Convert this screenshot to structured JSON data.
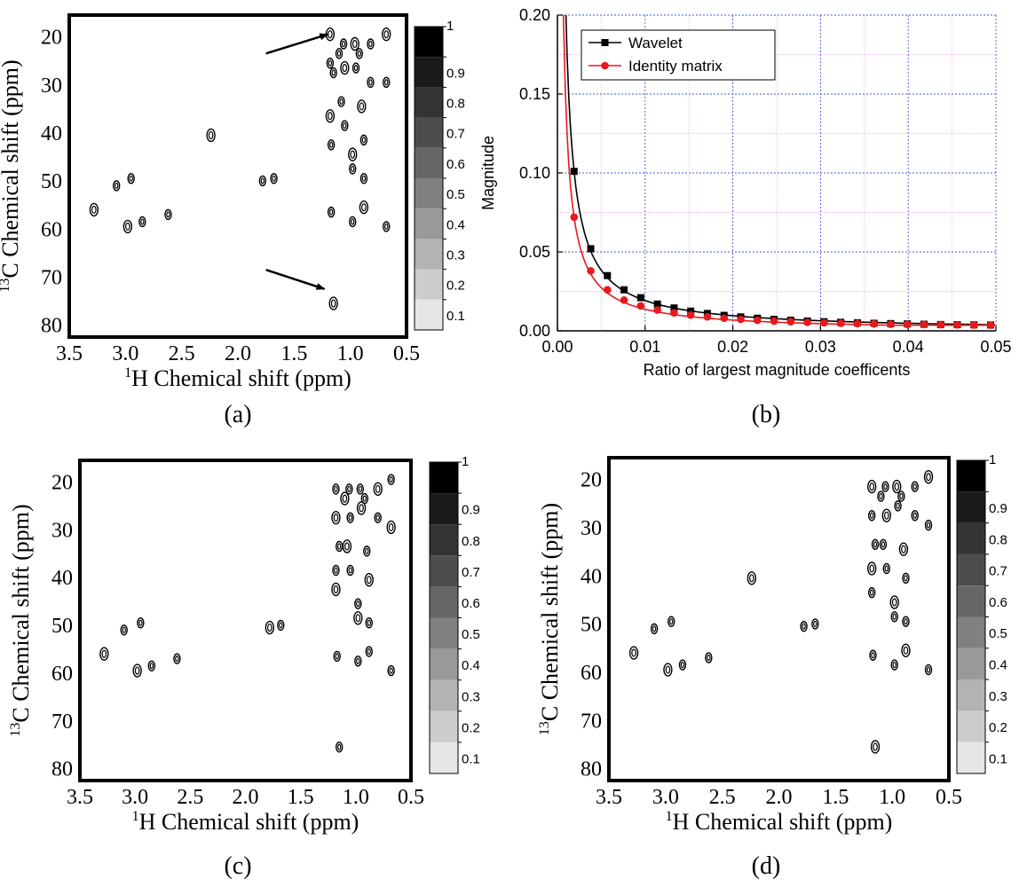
{
  "chart_data": [
    {
      "id": "a",
      "type": "contour",
      "panel_label": "(a)",
      "xlabel_sup": "1",
      "xlabel": "H Chemical shift (ppm)",
      "ylabel_sup": "13",
      "ylabel": "C Chemical shift (ppm)",
      "xticks": [
        "3.5",
        "3.0",
        "2.5",
        "2.0",
        "1.5",
        "1.0",
        "0.5"
      ],
      "yticks": [
        "20",
        "30",
        "40",
        "50",
        "60",
        "70",
        "80"
      ],
      "xlim": [
        3.5,
        0.5
      ],
      "ylim": [
        15,
        82
      ],
      "colorbar_ticks": [
        "0.1",
        "0.2",
        "0.3",
        "0.4",
        "0.5",
        "0.6",
        "0.7",
        "0.8",
        "0.9",
        "1"
      ],
      "arrows": [
        {
          "from": [
            1.75,
            23
          ],
          "to": [
            1.2,
            19
          ]
        },
        {
          "from": [
            1.75,
            68
          ],
          "to": [
            1.23,
            72
          ]
        }
      ],
      "peaks": [
        [
          3.28,
          55.5
        ],
        [
          3.08,
          50.5
        ],
        [
          2.95,
          49
        ],
        [
          2.98,
          59
        ],
        [
          2.85,
          58
        ],
        [
          2.62,
          56.5
        ],
        [
          2.24,
          40
        ],
        [
          1.78,
          49.5
        ],
        [
          1.68,
          49
        ],
        [
          1.18,
          19
        ],
        [
          1.18,
          25
        ],
        [
          1.15,
          27
        ],
        [
          1.18,
          36
        ],
        [
          1.17,
          42
        ],
        [
          1.17,
          56
        ],
        [
          1.15,
          75
        ],
        [
          1.1,
          23
        ],
        [
          1.06,
          21
        ],
        [
          1.05,
          26
        ],
        [
          1.08,
          33
        ],
        [
          1.05,
          38
        ],
        [
          0.98,
          44
        ],
        [
          0.98,
          47
        ],
        [
          0.98,
          58
        ],
        [
          0.96,
          21
        ],
        [
          0.95,
          26
        ],
        [
          0.92,
          23
        ],
        [
          0.9,
          34
        ],
        [
          0.88,
          41
        ],
        [
          0.88,
          49
        ],
        [
          0.88,
          55
        ],
        [
          0.82,
          21
        ],
        [
          0.82,
          29
        ],
        [
          0.68,
          19
        ],
        [
          0.68,
          29
        ],
        [
          0.68,
          59
        ]
      ]
    },
    {
      "id": "b",
      "type": "line",
      "panel_label": "(b)",
      "xlabel": "Ratio of largest magnitude coefficents",
      "ylabel": "Magnitude",
      "xlim": [
        0,
        0.05
      ],
      "ylim": [
        0,
        0.2
      ],
      "xticks": [
        "0.00",
        "0.01",
        "0.02",
        "0.03",
        "0.04",
        "0.05"
      ],
      "yticks": [
        "0.00",
        "0.05",
        "0.10",
        "0.15",
        "0.20"
      ],
      "grid": true,
      "legend_position": "top-left",
      "series": [
        {
          "name": "Wavelet",
          "color": "#000000",
          "marker": "square",
          "x": [
            0.0019,
            0.0038,
            0.0057,
            0.0076,
            0.0095,
            0.0114,
            0.0133,
            0.0152,
            0.0171,
            0.019,
            0.0209,
            0.0228,
            0.0247,
            0.0266,
            0.0285,
            0.0304,
            0.0323,
            0.0342,
            0.0361,
            0.038,
            0.0399,
            0.0418,
            0.0437,
            0.0456,
            0.0475,
            0.0494
          ],
          "y": [
            0.101,
            0.052,
            0.035,
            0.026,
            0.021,
            0.017,
            0.0145,
            0.0125,
            0.011,
            0.0098,
            0.0088,
            0.008,
            0.0073,
            0.0067,
            0.0062,
            0.0058,
            0.0054,
            0.0051,
            0.0048,
            0.0046,
            0.0044,
            0.0042,
            0.004,
            0.0039,
            0.0038,
            0.0037
          ]
        },
        {
          "name": "Identity matrix",
          "color": "#e8191c",
          "marker": "circle",
          "x": [
            0.0019,
            0.0038,
            0.0057,
            0.0076,
            0.0095,
            0.0114,
            0.0133,
            0.0152,
            0.0171,
            0.019,
            0.0209,
            0.0228,
            0.0247,
            0.0266,
            0.0285,
            0.0304,
            0.0323,
            0.0342,
            0.0361,
            0.038,
            0.0399,
            0.0418,
            0.0437,
            0.0456,
            0.0475,
            0.0494
          ],
          "y": [
            0.072,
            0.038,
            0.026,
            0.0195,
            0.0158,
            0.0132,
            0.0114,
            0.01,
            0.0089,
            0.008,
            0.0073,
            0.0067,
            0.0062,
            0.0058,
            0.0054,
            0.0051,
            0.0048,
            0.0046,
            0.0044,
            0.0042,
            0.0041,
            0.004,
            0.0039,
            0.0038,
            0.0037,
            0.0036
          ]
        }
      ]
    },
    {
      "id": "c",
      "type": "contour",
      "panel_label": "(c)",
      "xlabel_sup": "1",
      "xlabel": "H Chemical shift (ppm)",
      "ylabel_sup": "13",
      "ylabel": "C Chemical shift (ppm)",
      "xticks": [
        "3.5",
        "3.0",
        "2.5",
        "2.0",
        "1.5",
        "1.0",
        "0.5"
      ],
      "yticks": [
        "20",
        "30",
        "40",
        "50",
        "60",
        "70",
        "80"
      ],
      "xlim": [
        3.5,
        0.5
      ],
      "ylim": [
        15,
        82
      ],
      "colorbar_ticks": [
        "0.1",
        "0.2",
        "0.3",
        "0.4",
        "0.5",
        "0.6",
        "0.7",
        "0.8",
        "0.9",
        "1"
      ],
      "arrows": [],
      "peaks": [
        [
          3.28,
          55.5
        ],
        [
          3.1,
          50.5
        ],
        [
          2.95,
          49
        ],
        [
          2.98,
          59
        ],
        [
          2.85,
          58
        ],
        [
          2.62,
          56.5
        ],
        [
          1.78,
          50
        ],
        [
          1.68,
          49.5
        ],
        [
          1.18,
          21
        ],
        [
          1.18,
          27
        ],
        [
          1.15,
          33
        ],
        [
          1.18,
          38
        ],
        [
          1.18,
          42
        ],
        [
          1.17,
          56
        ],
        [
          1.15,
          75
        ],
        [
          1.1,
          23
        ],
        [
          1.06,
          21
        ],
        [
          1.05,
          27
        ],
        [
          1.08,
          33
        ],
        [
          1.05,
          38
        ],
        [
          0.98,
          45
        ],
        [
          0.98,
          48
        ],
        [
          0.98,
          57
        ],
        [
          0.96,
          21
        ],
        [
          0.95,
          25
        ],
        [
          0.92,
          23
        ],
        [
          0.9,
          34
        ],
        [
          0.88,
          40
        ],
        [
          0.88,
          49
        ],
        [
          0.88,
          55
        ],
        [
          0.8,
          21
        ],
        [
          0.8,
          27
        ],
        [
          0.68,
          19
        ],
        [
          0.68,
          29
        ],
        [
          0.68,
          59
        ]
      ]
    },
    {
      "id": "d",
      "type": "contour",
      "panel_label": "(d)",
      "xlabel_sup": "1",
      "xlabel": "H Chemical shift (ppm)",
      "ylabel_sup": "13",
      "ylabel": "C Chemical shift (ppm)",
      "xticks": [
        "3.5",
        "3.0",
        "2.5",
        "2.0",
        "1.5",
        "1.0",
        "0.5"
      ],
      "yticks": [
        "20",
        "30",
        "40",
        "50",
        "60",
        "70",
        "80"
      ],
      "xlim": [
        3.5,
        0.5
      ],
      "ylim": [
        15,
        82
      ],
      "colorbar_ticks": [
        "0.1",
        "0.2",
        "0.3",
        "0.4",
        "0.5",
        "0.6",
        "0.7",
        "0.8",
        "0.9",
        "1"
      ],
      "arrows": [],
      "peaks": [
        [
          3.28,
          55.5
        ],
        [
          3.1,
          50.5
        ],
        [
          2.95,
          49
        ],
        [
          2.98,
          59
        ],
        [
          2.85,
          58
        ],
        [
          2.62,
          56.5
        ],
        [
          2.24,
          40
        ],
        [
          1.78,
          50
        ],
        [
          1.68,
          49.5
        ],
        [
          1.18,
          21
        ],
        [
          1.18,
          27
        ],
        [
          1.15,
          33
        ],
        [
          1.18,
          38
        ],
        [
          1.18,
          43
        ],
        [
          1.17,
          56
        ],
        [
          1.15,
          75
        ],
        [
          1.1,
          23
        ],
        [
          1.06,
          21
        ],
        [
          1.05,
          27
        ],
        [
          1.08,
          33
        ],
        [
          1.05,
          38
        ],
        [
          0.98,
          45
        ],
        [
          0.98,
          48
        ],
        [
          0.98,
          58
        ],
        [
          0.96,
          21
        ],
        [
          0.95,
          25
        ],
        [
          0.92,
          23
        ],
        [
          0.9,
          34
        ],
        [
          0.88,
          40
        ],
        [
          0.88,
          49
        ],
        [
          0.88,
          55
        ],
        [
          0.8,
          21
        ],
        [
          0.8,
          27
        ],
        [
          0.68,
          19
        ],
        [
          0.68,
          29
        ],
        [
          0.68,
          59
        ]
      ]
    }
  ]
}
